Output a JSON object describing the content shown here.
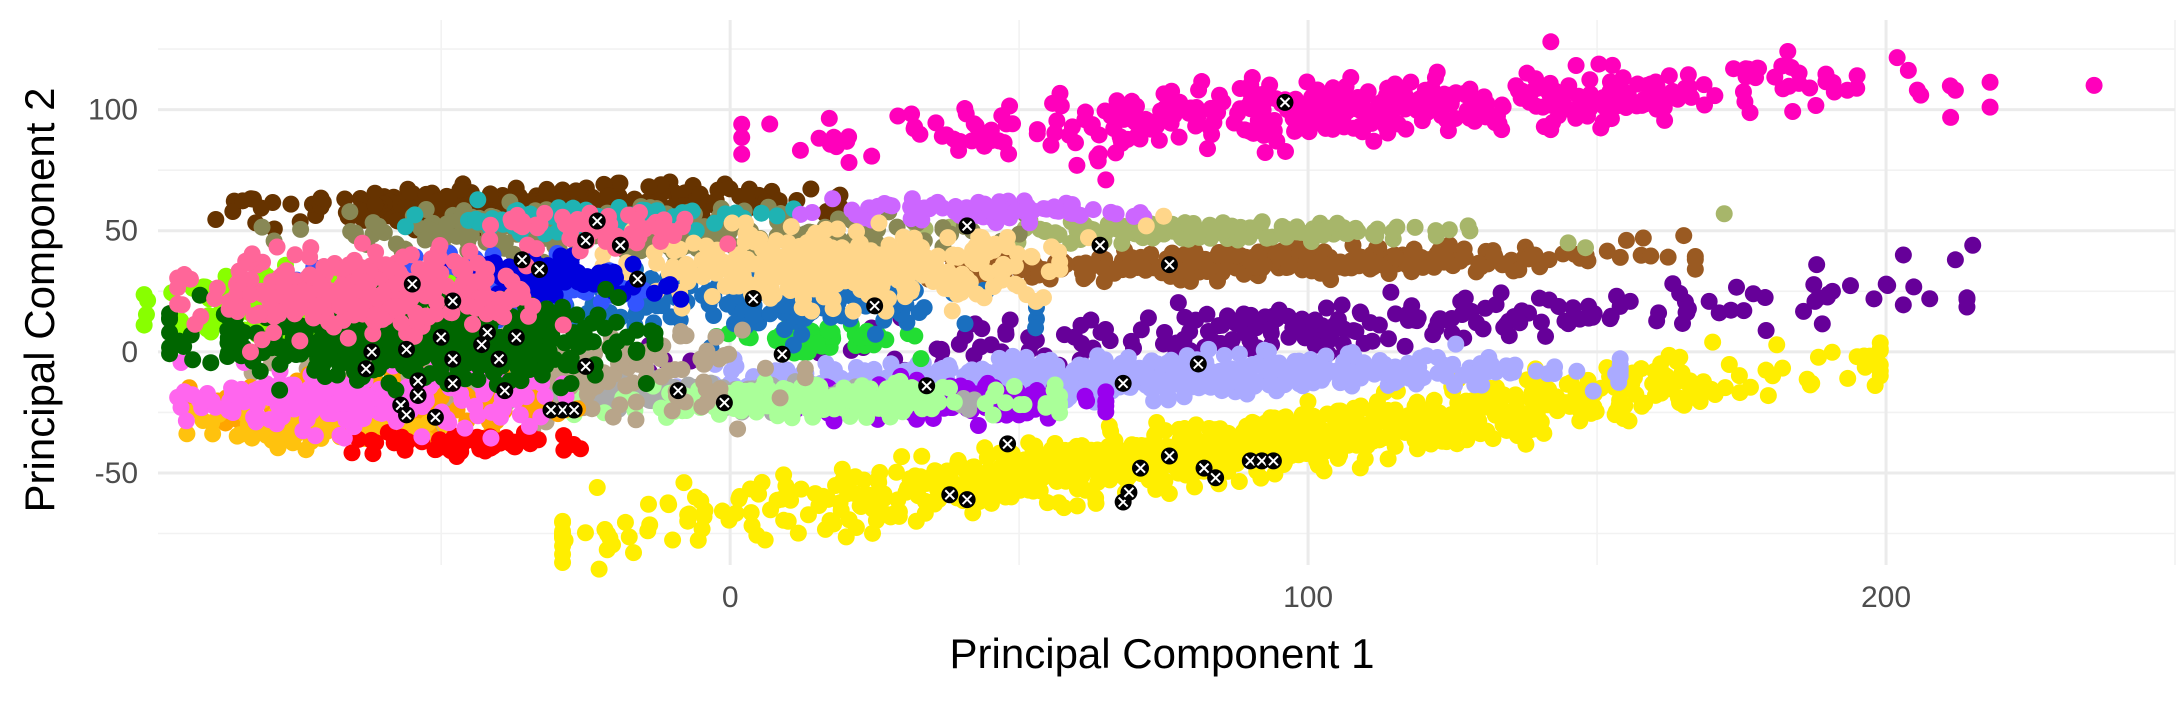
{
  "chart_data": {
    "type": "scatter",
    "title": "",
    "xlabel": "Principal Component 1",
    "ylabel": "Principal Component 2",
    "xlim": [
      -99,
      250
    ],
    "ylim": [
      -88,
      137
    ],
    "x_ticks": [
      0,
      100,
      200
    ],
    "x_minor_ticks": [
      -50,
      50,
      150,
      250
    ],
    "y_ticks": [
      -50,
      0,
      50,
      100
    ],
    "y_minor_ticks": [
      -75,
      -25,
      25,
      75,
      125
    ],
    "grid": true,
    "legend": "none",
    "marker_overlay": "black circle with white x",
    "clusters": [
      {
        "color": "#FF00BB",
        "cx": 110,
        "cy": 100,
        "rx": 90,
        "ry": 12,
        "slope": 0.12,
        "n": 420,
        "extra": [
          [
            236,
            110
          ],
          [
            212,
            108
          ],
          [
            206,
            106
          ],
          [
            183,
            124
          ],
          [
            142,
            128
          ],
          [
            195,
            114
          ],
          [
            65,
            71
          ],
          [
            60,
            77
          ],
          [
            48,
            61
          ]
        ]
      },
      {
        "color": "#FFEE00",
        "cx": 85,
        "cy": -40,
        "rx": 95,
        "ry": 12,
        "slope": 0.32,
        "n": 900,
        "extra": [
          [
            195,
            -2
          ],
          [
            170,
            4
          ],
          [
            -6,
            -60
          ],
          [
            -23,
            -56
          ],
          [
            -8,
            -54
          ]
        ]
      },
      {
        "color": "#660099",
        "cx": 100,
        "cy": 10,
        "rx": 95,
        "ry": 10,
        "slope": 0.12,
        "n": 220,
        "extra": [
          [
            215,
            44
          ],
          [
            212,
            38
          ],
          [
            203,
            40
          ],
          [
            188,
            36
          ]
        ]
      },
      {
        "color": "#9A5A22",
        "cx": 95,
        "cy": 37,
        "rx": 60,
        "ry": 6,
        "slope": 0.05,
        "n": 320,
        "extra": [
          [
            165,
            48
          ],
          [
            158,
            47
          ]
        ]
      },
      {
        "color": "#A7B66A",
        "cx": 80,
        "cy": 50,
        "rx": 40,
        "ry": 4,
        "slope": 0.0,
        "n": 140,
        "extra": [
          [
            172,
            57
          ],
          [
            145,
            45
          ],
          [
            148,
            43
          ]
        ]
      },
      {
        "color": "#AAAAFF",
        "cx": 70,
        "cy": -10,
        "rx": 70,
        "ry": 8,
        "slope": 0.05,
        "n": 520,
        "extra": []
      },
      {
        "color": "#9900EE",
        "cx": 35,
        "cy": -20,
        "rx": 25,
        "ry": 8,
        "slope": 0.0,
        "n": 140,
        "extra": []
      },
      {
        "color": "#AAAAAA",
        "cx": -5,
        "cy": -18,
        "rx": 40,
        "ry": 5,
        "slope": -0.05,
        "n": 320,
        "extra": []
      },
      {
        "color": "#AAFF99",
        "cx": 15,
        "cy": -20,
        "rx": 35,
        "ry": 6,
        "slope": 0.0,
        "n": 220,
        "extra": []
      },
      {
        "color": "#22DD33",
        "cx": 15,
        "cy": 5,
        "rx": 15,
        "ry": 6,
        "slope": 0.0,
        "n": 60,
        "extra": []
      },
      {
        "color": "#1A6FBF",
        "cx": 5,
        "cy": 20,
        "rx": 40,
        "ry": 14,
        "slope": 0.0,
        "n": 160,
        "extra": []
      },
      {
        "color": "#663300",
        "cx": -35,
        "cy": 60,
        "rx": 45,
        "ry": 8,
        "slope": 0.05,
        "n": 320,
        "extra": []
      },
      {
        "color": "#888855",
        "cx": -15,
        "cy": 50,
        "rx": 55,
        "ry": 10,
        "slope": 0.0,
        "n": 260,
        "extra": []
      },
      {
        "color": "#1FB3B3",
        "cx": -25,
        "cy": 55,
        "rx": 30,
        "ry": 6,
        "slope": 0.0,
        "n": 80,
        "extra": []
      },
      {
        "color": "#CC66FF",
        "cx": 40,
        "cy": 58,
        "rx": 30,
        "ry": 4,
        "slope": 0.0,
        "n": 80,
        "extra": []
      },
      {
        "color": "#FFD68A",
        "cx": 20,
        "cy": 35,
        "rx": 35,
        "ry": 14,
        "slope": 0.0,
        "n": 360,
        "extra": [
          [
            75,
            56
          ],
          [
            72,
            52
          ]
        ]
      },
      {
        "color": "#B8A58A",
        "cx": -35,
        "cy": -10,
        "rx": 40,
        "ry": 18,
        "slope": 0.0,
        "n": 220,
        "extra": []
      },
      {
        "color": "#3355FF",
        "cx": -45,
        "cy": 25,
        "rx": 25,
        "ry": 12,
        "slope": 0.0,
        "n": 200,
        "extra": []
      },
      {
        "color": "#0000DD",
        "cx": -30,
        "cy": 30,
        "rx": 18,
        "ry": 8,
        "slope": 0.0,
        "n": 80,
        "extra": []
      },
      {
        "color": "#FFA500",
        "cx": -60,
        "cy": -22,
        "rx": 28,
        "ry": 12,
        "slope": 0.0,
        "n": 160,
        "extra": []
      },
      {
        "color": "#FFC20E",
        "cx": -70,
        "cy": -30,
        "rx": 20,
        "ry": 8,
        "slope": 0.0,
        "n": 120,
        "extra": [
          [
            -82,
            -32
          ]
        ]
      },
      {
        "color": "#FF0000",
        "cx": -48,
        "cy": -38,
        "rx": 20,
        "ry": 4,
        "slope": 0.0,
        "n": 60,
        "extra": []
      },
      {
        "color": "#88FF00",
        "cx": -75,
        "cy": 20,
        "rx": 22,
        "ry": 14,
        "slope": 0.0,
        "n": 220,
        "extra": [
          [
            -82,
            24
          ],
          [
            -83,
            16
          ]
        ]
      },
      {
        "color": "#FF66EE",
        "cx": -62,
        "cy": -20,
        "rx": 28,
        "ry": 12,
        "slope": 0.0,
        "n": 220,
        "extra": []
      },
      {
        "color": "#006600",
        "cx": -55,
        "cy": 5,
        "rx": 35,
        "ry": 16,
        "slope": 0.0,
        "n": 480,
        "extra": []
      },
      {
        "color": "#FF6699",
        "cx": -62,
        "cy": 25,
        "rx": 28,
        "ry": 16,
        "slope": 0.0,
        "n": 300,
        "extra": [
          [
            -83,
            0
          ],
          [
            -81,
            5
          ],
          [
            -79,
            8
          ]
        ]
      },
      {
        "color": "#FF6699",
        "cx": -22,
        "cy": 50,
        "rx": 18,
        "ry": 8,
        "slope": 0.0,
        "n": 60,
        "extra": []
      }
    ],
    "highlighted_points": [
      [
        96,
        103
      ],
      [
        41,
        52
      ],
      [
        64,
        44
      ],
      [
        76,
        36
      ],
      [
        25,
        19
      ],
      [
        4,
        22
      ],
      [
        -16,
        30
      ],
      [
        -25,
        46
      ],
      [
        -23,
        54
      ],
      [
        -19,
        44
      ],
      [
        -33,
        34
      ],
      [
        -36,
        38
      ],
      [
        -55,
        28
      ],
      [
        -48,
        21
      ],
      [
        -42,
        8
      ],
      [
        -37,
        6
      ],
      [
        -62,
        0
      ],
      [
        -56,
        1
      ],
      [
        -50,
        6
      ],
      [
        -43,
        3
      ],
      [
        -48,
        -3
      ],
      [
        -40,
        -3
      ],
      [
        -25,
        -6
      ],
      [
        -63,
        -7
      ],
      [
        -54,
        -12
      ],
      [
        -48,
        -13
      ],
      [
        -54,
        -18
      ],
      [
        -57,
        -22
      ],
      [
        -56,
        -26
      ],
      [
        -51,
        -27
      ],
      [
        -39,
        -16
      ],
      [
        -29,
        -24
      ],
      [
        -27,
        -24
      ],
      [
        -31,
        -24
      ],
      [
        -9,
        -16
      ],
      [
        -1,
        -21
      ],
      [
        9,
        -1
      ],
      [
        34,
        -14
      ],
      [
        68,
        -13
      ],
      [
        81,
        -5
      ],
      [
        48,
        -38
      ],
      [
        38,
        -59
      ],
      [
        41,
        -61
      ],
      [
        68,
        -62
      ],
      [
        69,
        -58
      ],
      [
        71,
        -48
      ],
      [
        76,
        -43
      ],
      [
        82,
        -48
      ],
      [
        84,
        -52
      ],
      [
        90,
        -45
      ],
      [
        92,
        -45
      ],
      [
        94,
        -45
      ]
    ]
  }
}
